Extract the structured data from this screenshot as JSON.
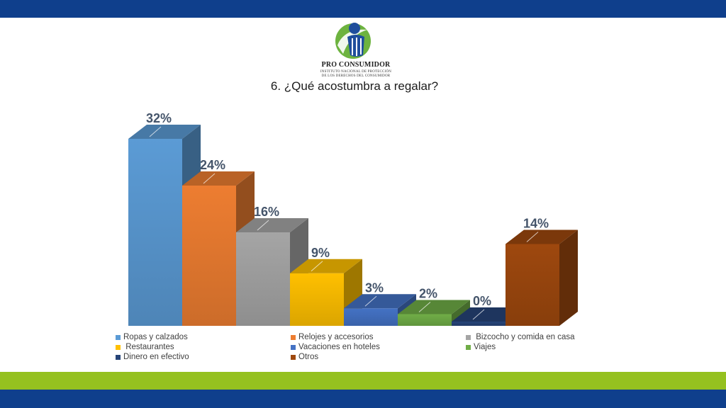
{
  "brand": {
    "name": "PRO CONSUMIDOR",
    "subtitle_line1": "INSTITUTO NACIONAL DE PROTECCIÓN",
    "subtitle_line2": "DE LOS DERECHOS DEL CONSUMIDOR",
    "colors": {
      "band_blue": "#0f3f8c",
      "band_green": "#95c11f"
    }
  },
  "chart_data": {
    "type": "bar",
    "title": "6. ¿Qué acostumbra a regalar?",
    "categories": [
      "Ropas y calzados",
      "Relojes y accesorios",
      "Bizcocho y comida en casa",
      "Restaurantes",
      "Vacaciones en hoteles",
      "Viajes",
      "Dinero en efectivo",
      "Otros"
    ],
    "values": [
      32,
      24,
      16,
      9,
      3,
      2,
      0,
      14
    ],
    "value_labels": [
      "32%",
      "24%",
      "16%",
      "9%",
      "3%",
      "2%",
      "0%",
      "14%"
    ],
    "colors": [
      "#5b9bd5",
      "#ed7d31",
      "#a5a5a5",
      "#ffc000",
      "#4472c4",
      "#70ad47",
      "#264478",
      "#9e480e"
    ],
    "ylim": [
      0,
      33
    ],
    "style": "3d-columns",
    "grid": false,
    "legend_position": "bottom",
    "xlabel": "",
    "ylabel": ""
  },
  "legend_labels": [
    "Ropas y calzados",
    "Relojes y accesorios",
    " Bizcocho y comida en casa",
    " Restaurantes",
    "Vacaciones en hoteles",
    "Viajes",
    "Dinero en efectivo",
    "Otros"
  ]
}
